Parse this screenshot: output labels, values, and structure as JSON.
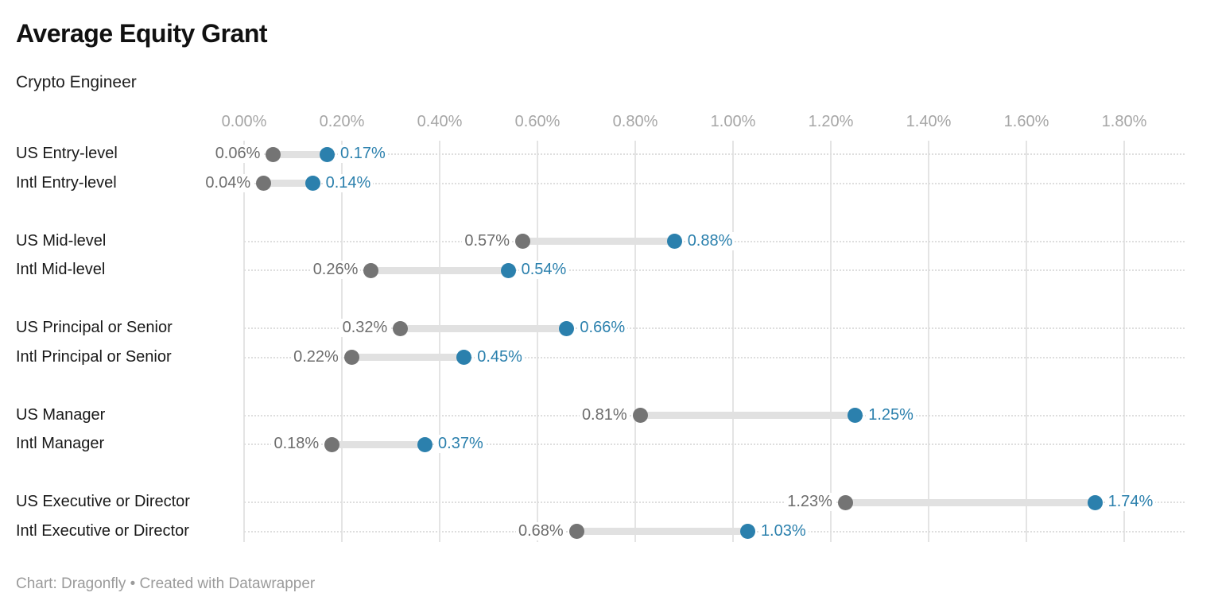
{
  "header": {
    "title": "Average Equity Grant",
    "subtitle": "Crypto Engineer"
  },
  "footer": {
    "credit": "Chart: Dragonfly • Created with Datawrapper"
  },
  "colors": {
    "end_dot_blue": "#2b80ad",
    "start_dot_gray": "#747474",
    "range_band": "#e1e1e1",
    "gridline": "#e4e4e4",
    "row_guide_dotted": "#dedede",
    "axis_label": "#a6a6a6",
    "start_value_text": "#6d6d6d",
    "category_text": "#191919",
    "footer_text": "#9b9b9b"
  },
  "chart_data": {
    "type": "dumbbell",
    "title": "Average Equity Grant",
    "subtitle": "Crypto Engineer",
    "unit": "%",
    "x_axis": {
      "min": 0,
      "max": 1.8,
      "tick_step": 0.2,
      "ticks": [
        "0.00%",
        "0.20%",
        "0.40%",
        "0.60%",
        "0.80%",
        "1.00%",
        "1.20%",
        "1.40%",
        "1.60%",
        "1.80%"
      ],
      "grid": "vertical-solid",
      "row_guides": "horizontal-dotted"
    },
    "rows": [
      {
        "label": "US Entry-level",
        "group": 0,
        "start": 0.06,
        "end": 0.17,
        "start_label": "0.06%",
        "end_label": "0.17%"
      },
      {
        "label": "Intl Entry-level",
        "group": 0,
        "start": 0.04,
        "end": 0.14,
        "start_label": "0.04%",
        "end_label": "0.14%"
      },
      {
        "label": "US Mid-level",
        "group": 1,
        "start": 0.57,
        "end": 0.88,
        "start_label": "0.57%",
        "end_label": "0.88%"
      },
      {
        "label": "Intl Mid-level",
        "group": 1,
        "start": 0.26,
        "end": 0.54,
        "start_label": "0.26%",
        "end_label": "0.54%"
      },
      {
        "label": "US Principal or Senior",
        "group": 2,
        "start": 0.32,
        "end": 0.66,
        "start_label": "0.32%",
        "end_label": "0.66%"
      },
      {
        "label": "Intl Principal or Senior",
        "group": 2,
        "start": 0.22,
        "end": 0.45,
        "start_label": "0.22%",
        "end_label": "0.45%"
      },
      {
        "label": "US Manager",
        "group": 3,
        "start": 0.81,
        "end": 1.25,
        "start_label": "0.81%",
        "end_label": "1.25%"
      },
      {
        "label": "Intl Manager",
        "group": 3,
        "start": 0.18,
        "end": 0.37,
        "start_label": "0.18%",
        "end_label": "0.37%"
      },
      {
        "label": "US Executive or Director",
        "group": 4,
        "start": 1.23,
        "end": 1.74,
        "start_label": "1.23%",
        "end_label": "1.74%"
      },
      {
        "label": "Intl Executive or Director",
        "group": 4,
        "start": 0.68,
        "end": 1.03,
        "start_label": "0.68%",
        "end_label": "1.03%"
      }
    ]
  }
}
